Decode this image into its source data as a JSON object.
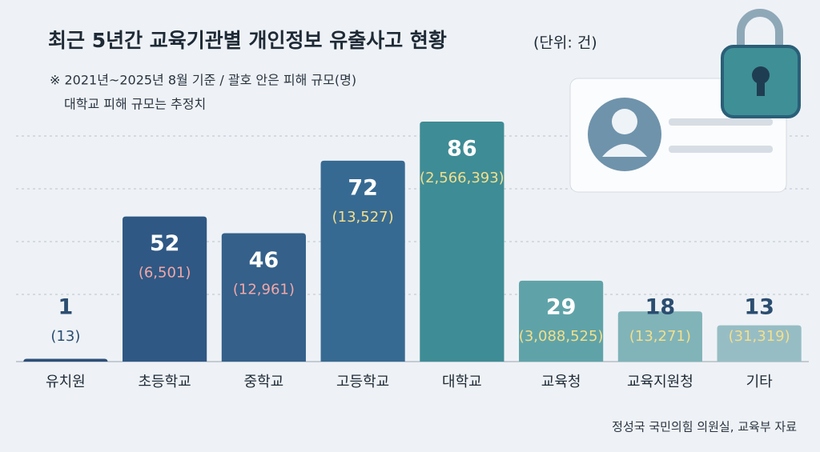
{
  "chart_data": {
    "type": "bar",
    "title": "최근 5년간 교육기관별 개인정보 유출사고 현황",
    "unit": "(단위: 건)",
    "notes": [
      "※ 2021년~2025년 8월 기준 / 괄호 안은 피해 규모(명)",
      "대학교 피해 규모는 추정치"
    ],
    "source": "정성국 국민의힘 의원실, 교육부 자료",
    "categories": [
      "유치원",
      "초등학교",
      "중학교",
      "고등학교",
      "대학교",
      "교육청",
      "교육지원청",
      "기타"
    ],
    "values": [
      1,
      52,
      46,
      72,
      86,
      29,
      18,
      13
    ],
    "colors": [
      "#2c4f78",
      "#2f5884",
      "#34608a",
      "#376a92",
      "#3e8c95",
      "#5fa3a8",
      "#80b4b9",
      "#97bdc4"
    ],
    "victims": {
      "values": [
        13,
        6501,
        12961,
        13527,
        2566393,
        3088525,
        13271,
        31319
      ],
      "value_labels": [
        "(13)",
        "(6,501)",
        "(12,961)",
        "(13,527)",
        "(2,566,393)",
        "(3,088,525)",
        "(13,271)",
        "(31,319)"
      ],
      "colors": [
        "#2b4d70",
        "#f2a7a7",
        "#f2a7a7",
        "#f3df8c",
        "#f3df8c",
        "#f3df8c",
        "#f3df8c",
        "#f3df8c"
      ]
    }
  }
}
